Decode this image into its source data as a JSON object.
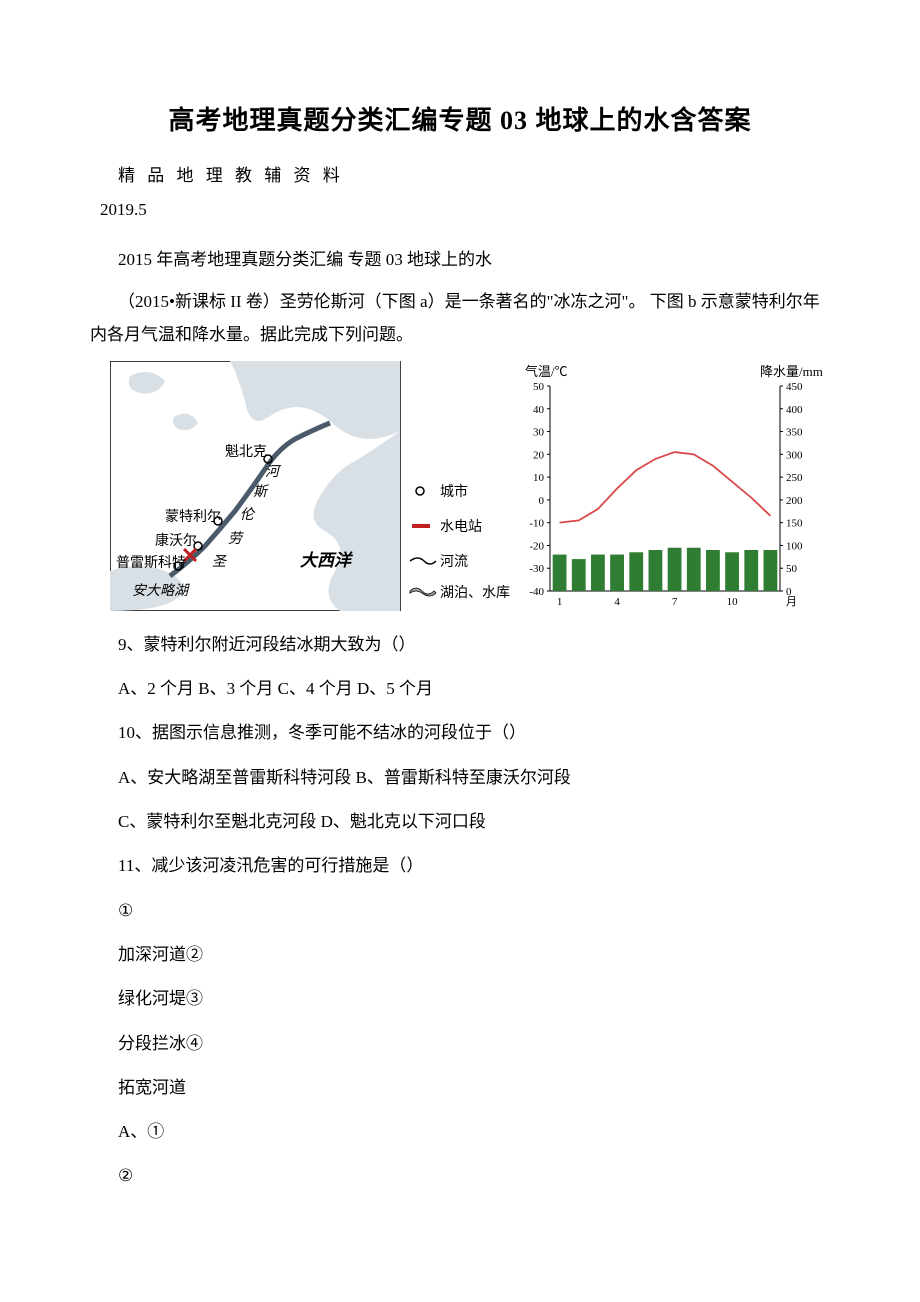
{
  "title": "高考地理真题分类汇编专题 03 地球上的水含答案",
  "subtitle_spaced": "精 品 地 理 教 辅 资 料",
  "date": " 2019.5",
  "line1": "2015 年高考地理真题分类汇编 专题 03 地球上的水",
  "intro": "（2015•新课标 II 卷）圣劳伦斯河（下图 a）是一条著名的\"冰冻之河\"。 下图 b 示意蒙特利尔年内各月气温和降水量。据此完成下列问题。",
  "map": {
    "border_color": "#000000",
    "water_fill": "#d8dfe5",
    "river_color": "#000000",
    "land_fill": "#ffffff",
    "label_font": 14,
    "labels": {
      "quebec": "魁北克",
      "montreal": "蒙特利尔",
      "cornwall": "康沃尔",
      "prescott": "普雷斯科特",
      "ontario_lake": "安大略湖",
      "atlantic": "大西洋",
      "river_chars": [
        "河",
        "斯",
        "伦",
        "劳",
        "圣"
      ],
      "legend": {
        "city": "城市",
        "station": "水电站",
        "river": "河流",
        "lake": "湖泊、水库"
      }
    },
    "station_symbol_color": "#c02020"
  },
  "chart": {
    "title_left": "气温/℃",
    "title_right": "降水量/mm",
    "axis_color": "#000000",
    "temp_line_color": "#d94848",
    "bar_color": "#2e7d32",
    "background": "#ffffff",
    "x_ticks": [
      "1",
      "4",
      "7",
      "10",
      "月"
    ],
    "y_left": {
      "min": -40,
      "max": 50,
      "step": 10,
      "ticks": [
        -40,
        -30,
        -20,
        -10,
        0,
        10,
        20,
        30,
        40,
        50
      ]
    },
    "y_right": {
      "min": 0,
      "max": 450,
      "step": 50,
      "ticks": [
        0,
        50,
        100,
        150,
        200,
        250,
        300,
        350,
        400,
        450
      ]
    },
    "months": [
      1,
      2,
      3,
      4,
      5,
      6,
      7,
      8,
      9,
      10,
      11,
      12
    ],
    "temp_values": [
      -10,
      -9,
      -4,
      5,
      13,
      18,
      21,
      20,
      15,
      8,
      1,
      -7
    ],
    "precip_values": [
      80,
      70,
      80,
      80,
      85,
      90,
      95,
      95,
      90,
      85,
      90,
      90
    ],
    "title_fontsize": 13,
    "tick_fontsize": 11,
    "bar_width_ratio": 0.72
  },
  "q9": "9、蒙特利尔附近河段结冰期大致为（）",
  "q9_opts": "A、2 个月 B、3 个月 C、4 个月 D、5 个月",
  "q10": "10、据图示信息推测，冬季可能不结冰的河段位于（）",
  "q10_optsA": "A、安大略湖至普雷斯科特河段 B、普雷斯科特至康沃尔河段",
  "q10_optsB": "C、蒙特利尔至魁北克河段 D、魁北克以下河口段",
  "q11": "11、减少该河凌汛危害的可行措施是（）",
  "circ1": "①",
  "m1": "加深河道②",
  "m2": "绿化河堤③",
  "m3": "分段拦冰④",
  "m4": "拓宽河道",
  "aopt": "A、①",
  "circ2": "②"
}
